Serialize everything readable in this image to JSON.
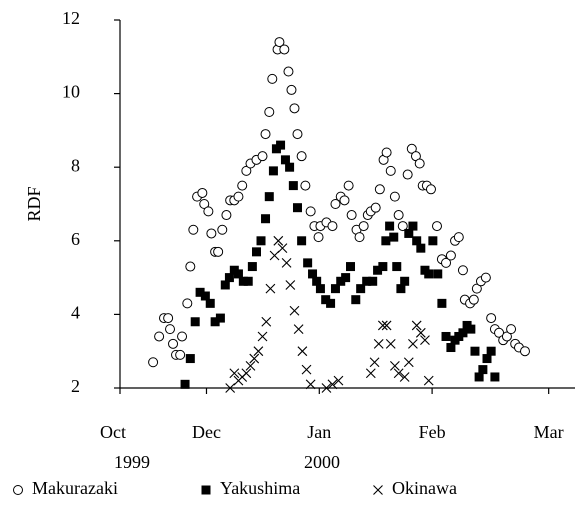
{
  "chart_data": {
    "type": "scatter",
    "y_label": "RDF",
    "year_labels": [
      "1999",
      "2000"
    ],
    "xlim": [
      0,
      121
    ],
    "xticks": [
      {
        "value": 0,
        "label": "Oct"
      },
      {
        "value": 23,
        "label": "Dec"
      },
      {
        "value": 53,
        "label": "Jan"
      },
      {
        "value": 83,
        "label": "Feb"
      },
      {
        "value": 114,
        "label": "Mar"
      }
    ],
    "ylim": [
      2,
      12
    ],
    "yticks": [
      2,
      4,
      6,
      8,
      10,
      12
    ],
    "legend": "bottom",
    "series": [
      {
        "name": "Makurazaki",
        "marker": "open-circle",
        "color": "#000000",
        "x": [
          8.8,
          10.4,
          11.7,
          12.8,
          13.3,
          14.1,
          14.9,
          16,
          16.5,
          17.9,
          18.7,
          19.5,
          20.5,
          21.9,
          22.4,
          23.5,
          24.3,
          25.3,
          26.1,
          27.2,
          28.3,
          29.3,
          30.4,
          31.5,
          32.5,
          33.6,
          34.7,
          36.3,
          37.9,
          38.7,
          39.7,
          40.5,
          41.9,
          42.4,
          43.7,
          44.8,
          45.6,
          46.4,
          47.2,
          48.3,
          49.3,
          50.7,
          51.7,
          52.8,
          53.3,
          54.9,
          56.5,
          57.3,
          58.7,
          59.7,
          60.8,
          61.6,
          62.9,
          63.7,
          64.8,
          65.9,
          66.7,
          68,
          69.1,
          70.1,
          70.9,
          72,
          73.1,
          74.1,
          75.2,
          76.5,
          77.6,
          78.7,
          79.7,
          80.5,
          81.6,
          82.7,
          84.3,
          85.6,
          86.7,
          88,
          89.1,
          90.1,
          91.2,
          91.7,
          93.1,
          94.1,
          94.9,
          96,
          97.3,
          98.7,
          99.7,
          100.8,
          101.9,
          102.9,
          104,
          105.1,
          106.1,
          107.7
        ],
        "values": [
          2.7,
          3.4,
          3.9,
          3.9,
          3.6,
          3.2,
          2.9,
          2.9,
          3.4,
          4.3,
          5.3,
          6.3,
          7.2,
          7.3,
          7.0,
          6.8,
          6.2,
          5.7,
          5.7,
          6.3,
          6.7,
          7.1,
          7.1,
          7.2,
          7.5,
          7.9,
          8.1,
          8.2,
          8.3,
          8.9,
          9.5,
          10.4,
          11.2,
          11.4,
          11.2,
          10.6,
          10.1,
          9.6,
          8.9,
          8.3,
          7.5,
          6.8,
          6.4,
          6.1,
          6.4,
          6.5,
          6.4,
          7.0,
          7.2,
          7.1,
          7.5,
          6.7,
          6.3,
          6.1,
          6.4,
          6.7,
          6.8,
          6.9,
          7.4,
          8.2,
          8.4,
          7.9,
          7.2,
          6.7,
          6.4,
          7.8,
          8.5,
          8.3,
          8.1,
          7.5,
          7.5,
          7.4,
          6.4,
          5.5,
          5.4,
          5.6,
          6.0,
          6.1,
          5.2,
          4.4,
          4.3,
          4.4,
          4.7,
          4.9,
          5.0,
          3.9,
          3.6,
          3.5,
          3.3,
          3.4,
          3.6,
          3.2,
          3.1,
          3.0
        ]
      },
      {
        "name": "Yakushima",
        "marker": "filled-square",
        "color": "#000000",
        "x": [
          17.3,
          18.7,
          20,
          21.3,
          22.7,
          24,
          25.3,
          26.7,
          28,
          29.1,
          30.4,
          31.5,
          32.8,
          34.1,
          35.2,
          36.3,
          37.5,
          38.7,
          39.7,
          40.8,
          41.6,
          42.7,
          44,
          45.1,
          46.1,
          47.2,
          48.3,
          49.9,
          51.2,
          52.3,
          53.3,
          54.7,
          56,
          57.3,
          58.7,
          60,
          61.3,
          62.7,
          64,
          65.6,
          67.2,
          68.5,
          69.9,
          70.7,
          71.7,
          72.8,
          73.6,
          74.7,
          75.7,
          76.8,
          77.9,
          78.9,
          80,
          81.1,
          82.1,
          83.2,
          84.5,
          85.6,
          86.7,
          88,
          89.1,
          90.1,
          91.2,
          92.3,
          93.3,
          94.4,
          95.5,
          96.5,
          97.6,
          98.7,
          99.7
        ],
        "values": [
          2.1,
          2.8,
          3.8,
          4.6,
          4.5,
          4.3,
          3.8,
          3.9,
          4.8,
          5.0,
          5.2,
          5.1,
          4.9,
          4.9,
          5.3,
          5.7,
          6.0,
          6.6,
          7.2,
          7.9,
          8.5,
          8.6,
          8.2,
          8.0,
          7.5,
          6.9,
          6.0,
          5.4,
          5.1,
          4.9,
          4.7,
          4.4,
          4.3,
          4.7,
          4.9,
          5.0,
          5.3,
          4.4,
          4.7,
          4.9,
          4.9,
          5.2,
          5.3,
          6.0,
          6.4,
          6.1,
          5.3,
          4.7,
          4.9,
          6.2,
          6.4,
          6.0,
          5.8,
          5.2,
          5.1,
          6.0,
          5.1,
          4.3,
          3.4,
          3.1,
          3.3,
          3.4,
          3.5,
          3.7,
          3.6,
          3.0,
          2.3,
          2.5,
          2.8,
          3.0,
          2.3
        ]
      },
      {
        "name": "Okinawa",
        "marker": "cross",
        "color": "#000000",
        "x": [
          29.3,
          30.4,
          31.5,
          32.5,
          33.6,
          34.7,
          35.7,
          36.8,
          37.9,
          38.9,
          40,
          41.1,
          42.1,
          43.2,
          44.3,
          45.3,
          46.4,
          47.5,
          48.5,
          49.6,
          50.7,
          54.9,
          56.5,
          58.1,
          66.7,
          67.7,
          68.8,
          69.9,
          70.9,
          72,
          73.1,
          74.1,
          75.7,
          76.8,
          77.9,
          78.9,
          80,
          81.1,
          82.1
        ],
        "values": [
          2.0,
          2.4,
          2.2,
          2.3,
          2.4,
          2.6,
          2.8,
          3.0,
          3.4,
          3.8,
          4.7,
          5.6,
          6.0,
          5.8,
          5.4,
          4.8,
          4.1,
          3.6,
          3.0,
          2.5,
          2.1,
          2.0,
          2.1,
          2.2,
          2.4,
          2.7,
          3.2,
          3.7,
          3.7,
          3.2,
          2.6,
          2.4,
          2.3,
          2.7,
          3.2,
          3.7,
          3.5,
          3.3,
          2.2
        ]
      }
    ]
  }
}
